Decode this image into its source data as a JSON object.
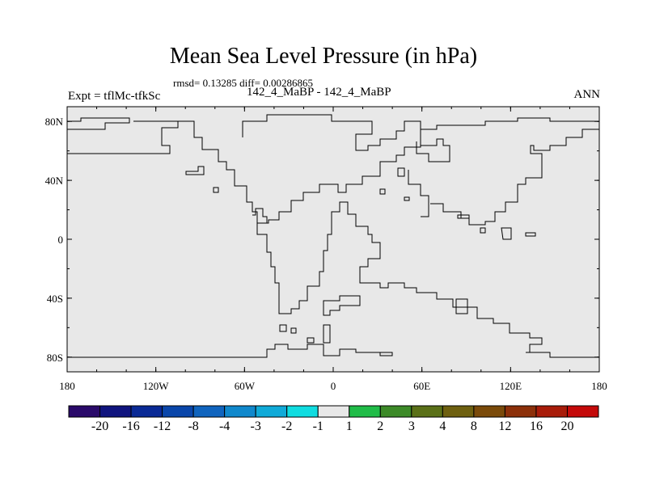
{
  "title": "Mean Sea Level Pressure (in hPa)",
  "stats": "rmsd= 0.13285 diff= 0.00286865",
  "experiment": "Expt = tflMc-tfkSc",
  "subtitle": "142_4_MaBP - 142_4_MaBP",
  "season": "ANN",
  "map": {
    "projection": "cylindrical equidistant",
    "lon_range": [
      -180,
      180
    ],
    "lat_range": [
      -90,
      90
    ],
    "fill_color": "#e8e8e8",
    "x_ticks": [
      {
        "value": -180,
        "label": "180"
      },
      {
        "value": -120,
        "label": "120W"
      },
      {
        "value": -60,
        "label": "60W"
      },
      {
        "value": 0,
        "label": "0"
      },
      {
        "value": 60,
        "label": "60E"
      },
      {
        "value": 120,
        "label": "120E"
      },
      {
        "value": 180,
        "label": "180"
      }
    ],
    "y_ticks": [
      {
        "value": 80,
        "label": "80N"
      },
      {
        "value": 40,
        "label": "40N"
      },
      {
        "value": 0,
        "label": "0"
      },
      {
        "value": -40,
        "label": "40S"
      },
      {
        "value": -80,
        "label": "80S"
      }
    ]
  },
  "colorbar": {
    "colors": [
      "#2a0a6a",
      "#10147e",
      "#0a2a96",
      "#0a46aa",
      "#1064be",
      "#1088cc",
      "#10aad8",
      "#10dce0",
      "#e8e8e8",
      "#20bc48",
      "#3c8a28",
      "#5a7018",
      "#6e6010",
      "#7a4a0a",
      "#8c300a",
      "#a81c0a",
      "#c40a0a"
    ],
    "labels": [
      "-20",
      "-16",
      "-12",
      "-8",
      "-4",
      "-3",
      "-2",
      "-1",
      "1",
      "2",
      "3",
      "4",
      "8",
      "12",
      "16",
      "20"
    ]
  }
}
